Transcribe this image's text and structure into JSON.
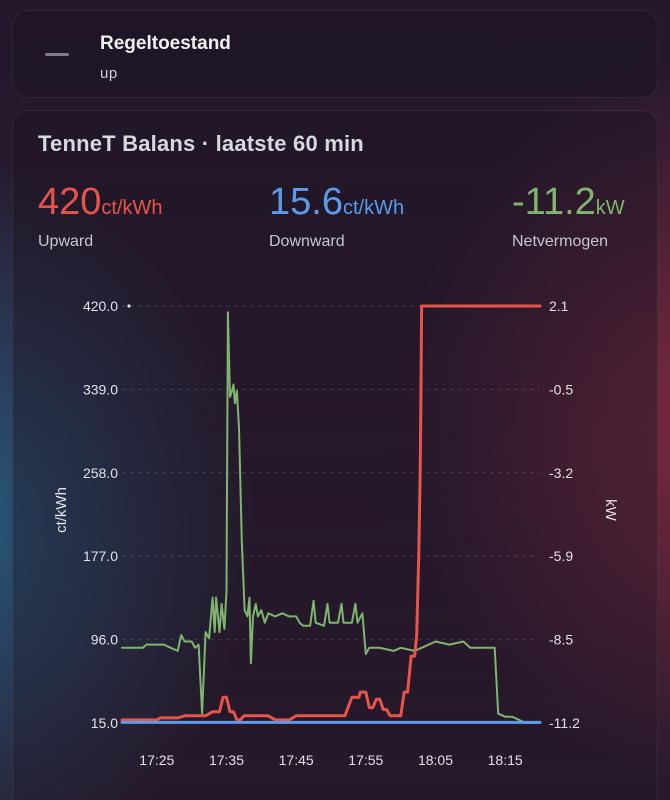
{
  "state_card": {
    "name": "Regeltoestand",
    "value": "up"
  },
  "chart_card": {
    "title": "TenneT Balans · laatste 60 min",
    "stats": {
      "upward": {
        "value": "420",
        "unit": "ct/kWh",
        "label": "Upward",
        "color": "#e8544a"
      },
      "downward": {
        "value": "15.6",
        "unit": "ct/kWh",
        "label": "Downward",
        "color": "#5b9bea"
      },
      "netvermogen": {
        "value": "-11.2",
        "unit": "kW",
        "label": "Netvermogen",
        "color": "#7fb56f"
      }
    }
  },
  "chart_data": {
    "type": "line",
    "x_ticks": [
      "17:25",
      "17:35",
      "17:45",
      "17:55",
      "18:05",
      "18:15"
    ],
    "x_tick_values": [
      25,
      35,
      45,
      55,
      65,
      75
    ],
    "xlim": [
      20,
      80
    ],
    "y_left": {
      "label": "ct/kWh",
      "ticks": [
        "420.0",
        "339.0",
        "258.0",
        "177.0",
        "96.0",
        "15.0"
      ],
      "range": [
        15,
        420
      ]
    },
    "y_right": {
      "label": "kW",
      "ticks": [
        "2.1",
        "-0.5",
        "-3.2",
        "-5.9",
        "-8.5",
        "-11.2"
      ],
      "range": [
        -11.2,
        2.1
      ]
    },
    "grid": true,
    "series": [
      {
        "name": "Upward",
        "axis": "left",
        "color": "#e8544a",
        "points": [
          [
            20,
            18
          ],
          [
            25,
            18
          ],
          [
            25.5,
            20
          ],
          [
            28,
            20
          ],
          [
            29,
            22
          ],
          [
            32,
            22
          ],
          [
            33,
            26
          ],
          [
            34,
            26
          ],
          [
            34.5,
            40
          ],
          [
            35,
            40
          ],
          [
            35.5,
            26
          ],
          [
            36,
            26
          ],
          [
            36.5,
            18
          ],
          [
            37,
            18
          ],
          [
            37.5,
            22
          ],
          [
            41,
            22
          ],
          [
            42,
            18
          ],
          [
            44,
            18
          ],
          [
            45,
            22
          ],
          [
            52,
            22
          ],
          [
            53,
            40
          ],
          [
            54,
            40
          ],
          [
            54.2,
            45
          ],
          [
            55,
            45
          ],
          [
            55.5,
            30
          ],
          [
            56,
            30
          ],
          [
            56.5,
            38
          ],
          [
            57,
            38
          ],
          [
            57.5,
            28
          ],
          [
            58,
            28
          ],
          [
            58.5,
            22
          ],
          [
            60,
            22
          ],
          [
            60.5,
            45
          ],
          [
            61,
            45
          ],
          [
            61.5,
            80
          ],
          [
            62,
            80
          ],
          [
            62.3,
            100
          ],
          [
            62.6,
            180
          ],
          [
            62.8,
            260
          ],
          [
            62.9,
            330
          ],
          [
            63,
            420
          ],
          [
            80,
            420
          ]
        ]
      },
      {
        "name": "Downward",
        "axis": "left",
        "color": "#5b9bea",
        "points": [
          [
            20,
            15.6
          ],
          [
            80,
            15.6
          ]
        ]
      },
      {
        "name": "Netvermogen",
        "axis": "right",
        "color": "#7fb56f",
        "points": [
          [
            20,
            -8.8
          ],
          [
            23,
            -8.8
          ],
          [
            23.5,
            -8.7
          ],
          [
            26,
            -8.7
          ],
          [
            27,
            -8.8
          ],
          [
            28,
            -8.9
          ],
          [
            28.5,
            -8.4
          ],
          [
            29,
            -8.6
          ],
          [
            30,
            -8.6
          ],
          [
            30.5,
            -8.8
          ],
          [
            31,
            -8.7
          ],
          [
            31.5,
            -10.9
          ],
          [
            32,
            -8.3
          ],
          [
            32.5,
            -8.5
          ],
          [
            33,
            -7.2
          ],
          [
            33.3,
            -8.3
          ],
          [
            33.5,
            -7.2
          ],
          [
            34,
            -8.3
          ],
          [
            34.3,
            -7.4
          ],
          [
            34.7,
            -8.2
          ],
          [
            35,
            -7.0
          ],
          [
            35.2,
            1.9
          ],
          [
            35.5,
            -0.8
          ],
          [
            35.8,
            -0.6
          ],
          [
            36,
            -0.4
          ],
          [
            36.2,
            -1.0
          ],
          [
            36.5,
            -0.6
          ],
          [
            36.8,
            -1.8
          ],
          [
            37.2,
            -5.4
          ],
          [
            37.6,
            -7.6
          ],
          [
            38,
            -7.8
          ],
          [
            38.3,
            -7.2
          ],
          [
            38.5,
            -9.3
          ],
          [
            38.8,
            -7.8
          ],
          [
            39.2,
            -7.4
          ],
          [
            39.5,
            -7.8
          ],
          [
            40,
            -7.6
          ],
          [
            40.5,
            -8.0
          ],
          [
            41,
            -7.7
          ],
          [
            42,
            -7.8
          ],
          [
            43,
            -7.7
          ],
          [
            44,
            -7.8
          ],
          [
            45,
            -7.8
          ],
          [
            45.5,
            -8.0
          ],
          [
            46,
            -8.1
          ],
          [
            47,
            -8.1
          ],
          [
            47.5,
            -7.3
          ],
          [
            47.8,
            -8.0
          ],
          [
            49,
            -8.1
          ],
          [
            49.5,
            -7.4
          ],
          [
            49.8,
            -8.0
          ],
          [
            51,
            -8.0
          ],
          [
            51.5,
            -7.4
          ],
          [
            51.8,
            -8.0
          ],
          [
            53,
            -8.0
          ],
          [
            53.5,
            -7.4
          ],
          [
            53.8,
            -8.0
          ],
          [
            54.5,
            -7.7
          ],
          [
            55,
            -9.0
          ],
          [
            55.5,
            -8.8
          ],
          [
            57,
            -8.8
          ],
          [
            59,
            -8.9
          ],
          [
            60,
            -8.8
          ],
          [
            62,
            -8.9
          ],
          [
            63,
            -8.8
          ],
          [
            65,
            -8.6
          ],
          [
            67,
            -8.7
          ],
          [
            69,
            -8.6
          ],
          [
            70,
            -8.8
          ],
          [
            72,
            -8.8
          ],
          [
            73.5,
            -8.8
          ],
          [
            74,
            -10.9
          ],
          [
            75,
            -11.0
          ],
          [
            76,
            -11.0
          ],
          [
            77,
            -11.1
          ],
          [
            78,
            -11.2
          ],
          [
            80,
            -11.2
          ]
        ]
      }
    ]
  }
}
